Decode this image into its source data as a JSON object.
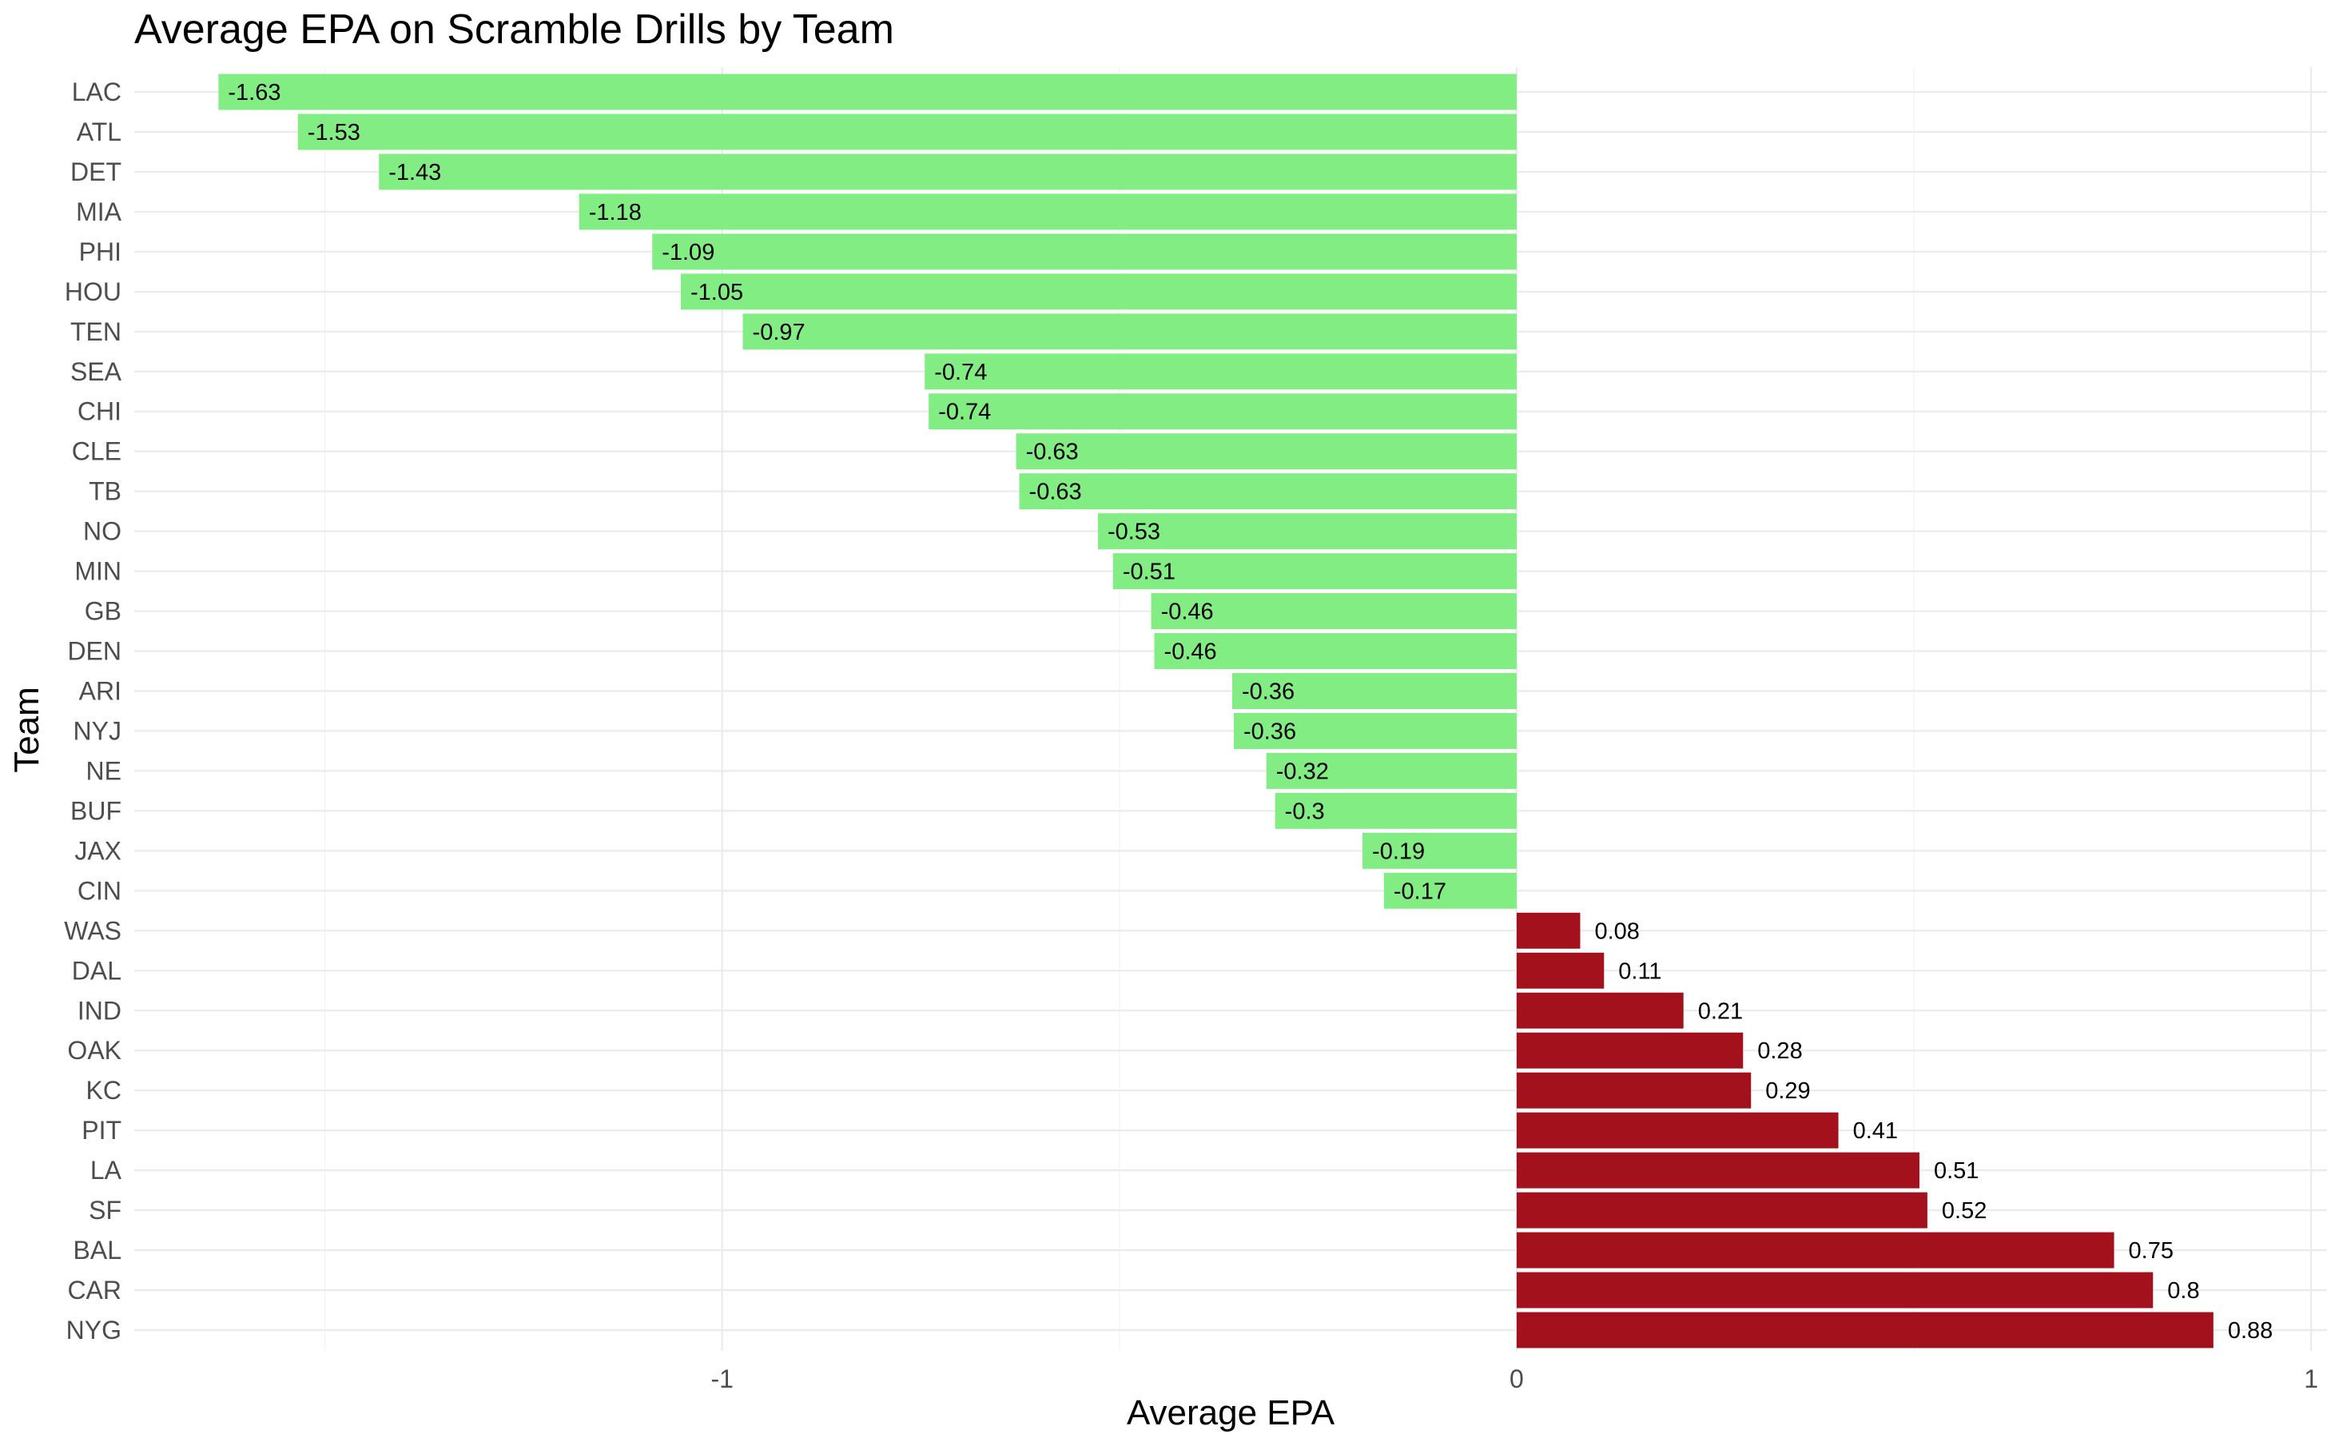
{
  "chart_data": {
    "type": "bar",
    "orientation": "horizontal",
    "title": "Average EPA on Scramble Drills by Team",
    "xlabel": "Average EPA",
    "ylabel": "Team",
    "xlim": [
      -1.74,
      1.02
    ],
    "xticks": [
      -1,
      0,
      1
    ],
    "grid": true,
    "legend": "none",
    "colors": {
      "negative": "#82ed82",
      "positive": "#a3121c"
    },
    "categories": [
      "LAC",
      "ATL",
      "DET",
      "MIA",
      "PHI",
      "HOU",
      "TEN",
      "SEA",
      "CHI",
      "CLE",
      "TB",
      "NO",
      "MIN",
      "GB",
      "DEN",
      "ARI",
      "NYJ",
      "NE",
      "BUF",
      "JAX",
      "CIN",
      "WAS",
      "DAL",
      "IND",
      "OAK",
      "KC",
      "PIT",
      "LA",
      "SF",
      "BAL",
      "CAR",
      "NYG"
    ],
    "values": [
      -1.634,
      -1.534,
      -1.432,
      -1.18,
      -1.088,
      -1.052,
      -0.974,
      -0.745,
      -0.74,
      -0.63,
      -0.626,
      -0.527,
      -0.508,
      -0.46,
      -0.456,
      -0.358,
      -0.356,
      -0.315,
      -0.304,
      -0.194,
      -0.167,
      0.08,
      0.11,
      0.21,
      0.285,
      0.295,
      0.405,
      0.507,
      0.517,
      0.752,
      0.801,
      0.877
    ],
    "labels": [
      "-1.63",
      "-1.53",
      "-1.43",
      "-1.18",
      "-1.09",
      "-1.05",
      "-0.97",
      "-0.74",
      "-0.74",
      "-0.63",
      "-0.63",
      "-0.53",
      "-0.51",
      "-0.46",
      "-0.46",
      "-0.36",
      "-0.36",
      "-0.32",
      "-0.3",
      "-0.19",
      "-0.17",
      "0.08",
      "0.11",
      "0.21",
      "0.28",
      "0.29",
      "0.41",
      "0.51",
      "0.52",
      "0.75",
      "0.8",
      "0.88"
    ]
  }
}
